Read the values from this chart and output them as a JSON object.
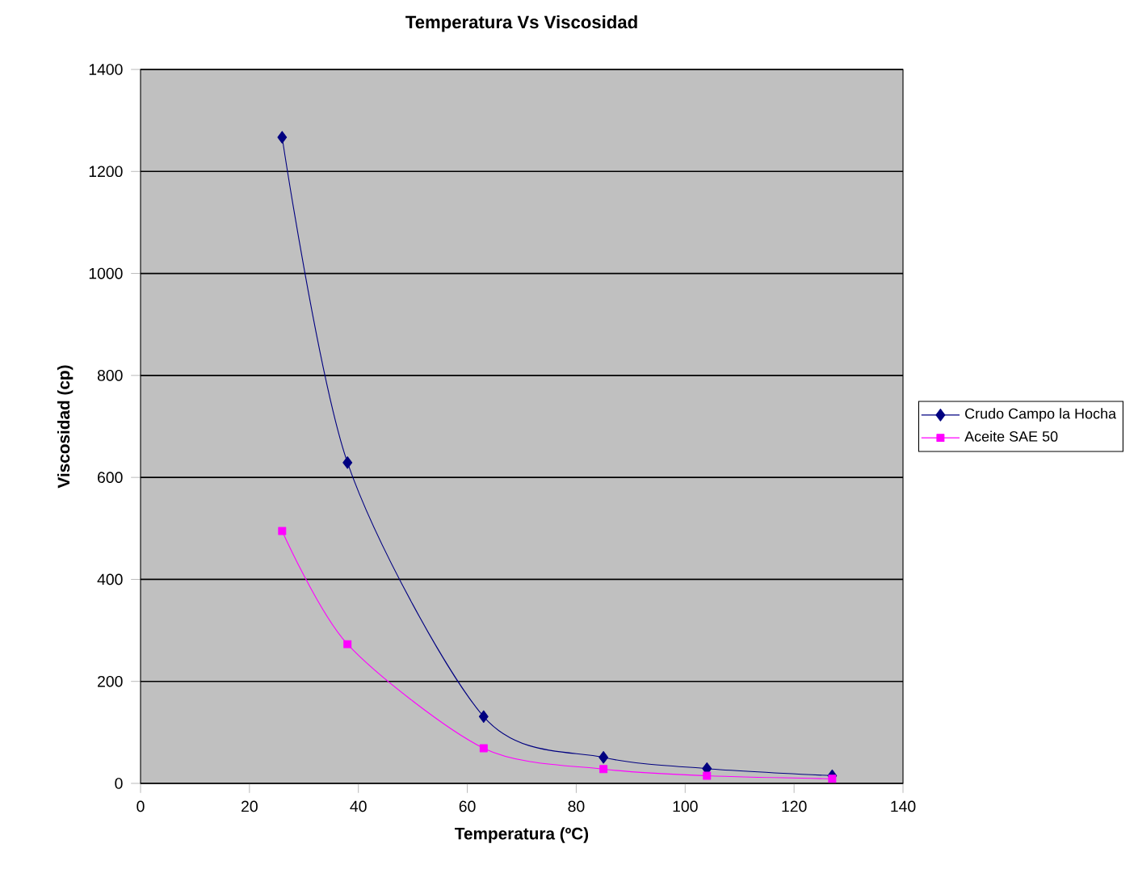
{
  "chart_data": {
    "type": "line",
    "title": "Temperatura Vs Viscosidad",
    "xlabel": "Temperatura  (ºC)",
    "ylabel": "Viscosidad (cp)",
    "xlim": [
      0,
      140
    ],
    "xticks": [
      0,
      20,
      40,
      60,
      80,
      100,
      120,
      140
    ],
    "ylim": [
      0,
      1400
    ],
    "yticks": [
      0,
      200,
      400,
      600,
      800,
      1000,
      1200,
      1400
    ],
    "grid": "y",
    "legend": "right",
    "line_style": "solid",
    "series": [
      {
        "name": "Crudo Campo la Hocha",
        "color": "#000080",
        "marker": "diamond",
        "x": [
          26,
          38,
          63,
          85,
          104,
          127
        ],
        "values": [
          1267,
          629,
          131,
          51,
          29,
          15
        ]
      },
      {
        "name": "Aceite SAE 50",
        "color": "#ff00ff",
        "marker": "square",
        "x": [
          26,
          38,
          63,
          85,
          104,
          127
        ],
        "values": [
          495,
          273,
          69,
          28,
          15,
          9
        ]
      }
    ]
  }
}
